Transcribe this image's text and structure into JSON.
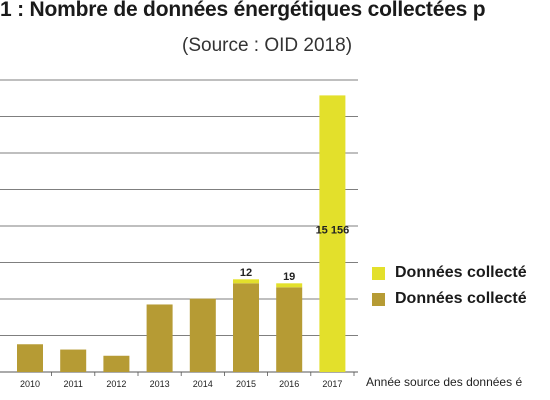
{
  "title": "1 : Nombre de données énergétiques collectées p",
  "subtitle": "(Source : OID 2018)",
  "legend": {
    "item1": "Données collecté",
    "item2": "Données collecté"
  },
  "xaxis_label": "Année source des données é",
  "colors": {
    "series1": "#e3e02b",
    "series2": "#b69b34",
    "grid": "#555555"
  },
  "chart_data": {
    "type": "bar",
    "title": "1 : Nombre de données énergétiques collectées p",
    "subtitle": "(Source : OID 2018)",
    "xlabel": "Année source des données é",
    "ylabel": "",
    "categories": [
      "2010",
      "2011",
      "2012",
      "2013",
      "2014",
      "2015",
      "2016",
      "2017"
    ],
    "series": [
      {
        "name": "Données collecté",
        "values": [
          0,
          0,
          0,
          0,
          0,
          12,
          19,
          15156
        ],
        "color": "#e3e02b"
      },
      {
        "name": "Données collecté",
        "values": [
          1520,
          1230,
          890,
          3700,
          4020,
          4860,
          4640,
          0
        ],
        "color": "#b69b34"
      }
    ],
    "data_labels": [
      "",
      "",
      "",
      "",
      "",
      "12",
      "19",
      "15 156"
    ],
    "ylim": [
      0,
      16000
    ],
    "grid": true,
    "stacked": true,
    "legend_position": "right"
  }
}
